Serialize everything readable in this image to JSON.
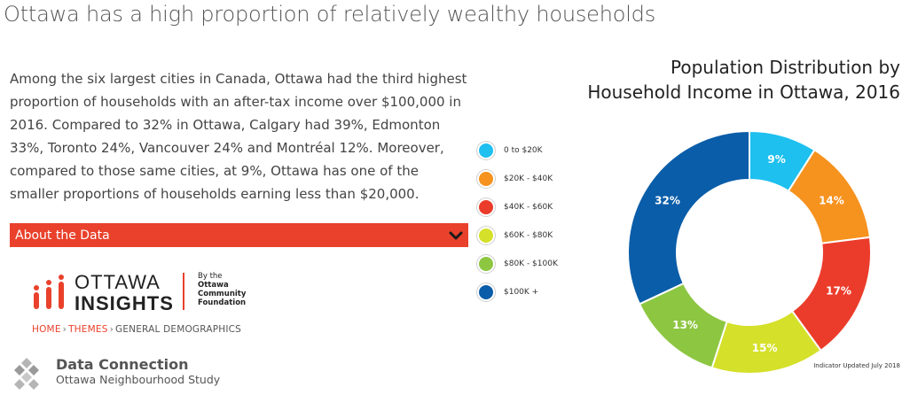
{
  "page": {
    "title": "Ottawa has a high proportion of relatively wealthy households",
    "intro": "Among the six largest cities in Canada, Ottawa had the third highest proportion of households with an after-tax income over $100,000 in 2016. Compared to 32% in Ottawa, Calgary had 39%, Edmonton 33%, Toronto 24%, Vancouver 24% and Montréal 12%. Moreover, compared to those same cities, at 9%, Ottawa has one of the smaller proportions of households earning less than $20,000."
  },
  "about": {
    "label": "About the Data",
    "icon": "chevron-down-icon"
  },
  "logo": {
    "word1": "OTTAWA",
    "word2": "INSIGHTS",
    "by_line1": "By the",
    "by_line2": "Ottawa",
    "by_line3": "Community",
    "by_line4": "Foundation"
  },
  "breadcrumb": {
    "home": "HOME",
    "themes": "THEMES",
    "current": "GENERAL DEMOGRAPHICS",
    "separator": "›"
  },
  "data_connection": {
    "title": "Data Connection",
    "subtitle": "Ottawa Neighbourhood Study"
  },
  "colors": {
    "accent": "#e9412b",
    "text": "#444444"
  },
  "chart_data": {
    "type": "pie",
    "donut": true,
    "title_line1": "Population Distribution by",
    "title_line2": "Household Income in Ottawa, 2016",
    "categories": [
      "0 to $20K",
      "$20K - $40K",
      "$40K - $60K",
      "$60K - $80K",
      "$80K - $100K",
      "$100K +"
    ],
    "values": [
      9,
      14,
      17,
      15,
      13,
      32
    ],
    "labels": [
      "9%",
      "14%",
      "17%",
      "15%",
      "13%",
      "32%"
    ],
    "colors": [
      "#1ec0ef",
      "#f6921e",
      "#eb3c2b",
      "#d5e02a",
      "#8dc641",
      "#0a5da8"
    ],
    "legend_position": "left",
    "footnote": "Indicator Updated July 2018"
  }
}
